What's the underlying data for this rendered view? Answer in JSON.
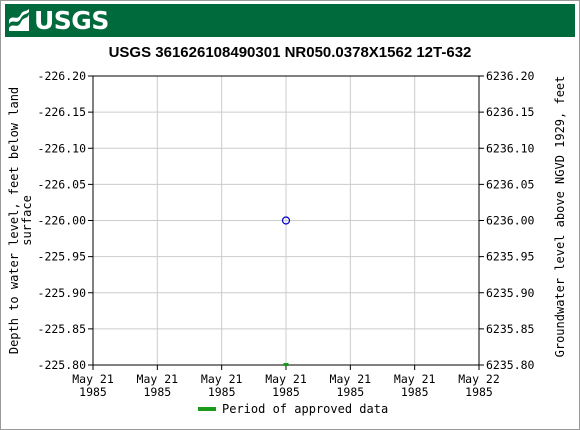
{
  "banner": {
    "logo_text": "USGS"
  },
  "chart_data": {
    "type": "scatter",
    "title": "USGS 361626108490301 NR050.0378X1562 12T-632",
    "ylabel_left": "Depth to water level, feet below land surface",
    "ylabel_right": "Groundwater level above NGVD 1929, feet",
    "y_left_ticks": [
      "-226.20",
      "-226.15",
      "-226.10",
      "-226.05",
      "-226.00",
      "-225.95",
      "-225.90",
      "-225.85",
      "-225.80"
    ],
    "y_right_ticks": [
      "6236.20",
      "6236.15",
      "6236.10",
      "6236.05",
      "6236.00",
      "6235.95",
      "6235.90",
      "6235.85",
      "6235.80"
    ],
    "ylim_left": [
      -226.2,
      -225.8
    ],
    "x_ticks": [
      {
        "line1": "May 21",
        "line2": "1985"
      },
      {
        "line1": "May 21",
        "line2": "1985"
      },
      {
        "line1": "May 21",
        "line2": "1985"
      },
      {
        "line1": "May 21",
        "line2": "1985"
      },
      {
        "line1": "May 21",
        "line2": "1985"
      },
      {
        "line1": "May 21",
        "line2": "1985"
      },
      {
        "line1": "May 22",
        "line2": "1985"
      }
    ],
    "x_range_days": [
      0,
      1
    ],
    "points": [
      {
        "x_day_fraction": 0.5,
        "y": -226.0
      }
    ],
    "approved_periods": [
      {
        "x_day_fraction": 0.5
      }
    ],
    "grid": true,
    "legend": {
      "label": "Period of approved data",
      "color": "#1a9a1a",
      "placement": "bottom-center"
    },
    "point_color": "#0000cc"
  }
}
